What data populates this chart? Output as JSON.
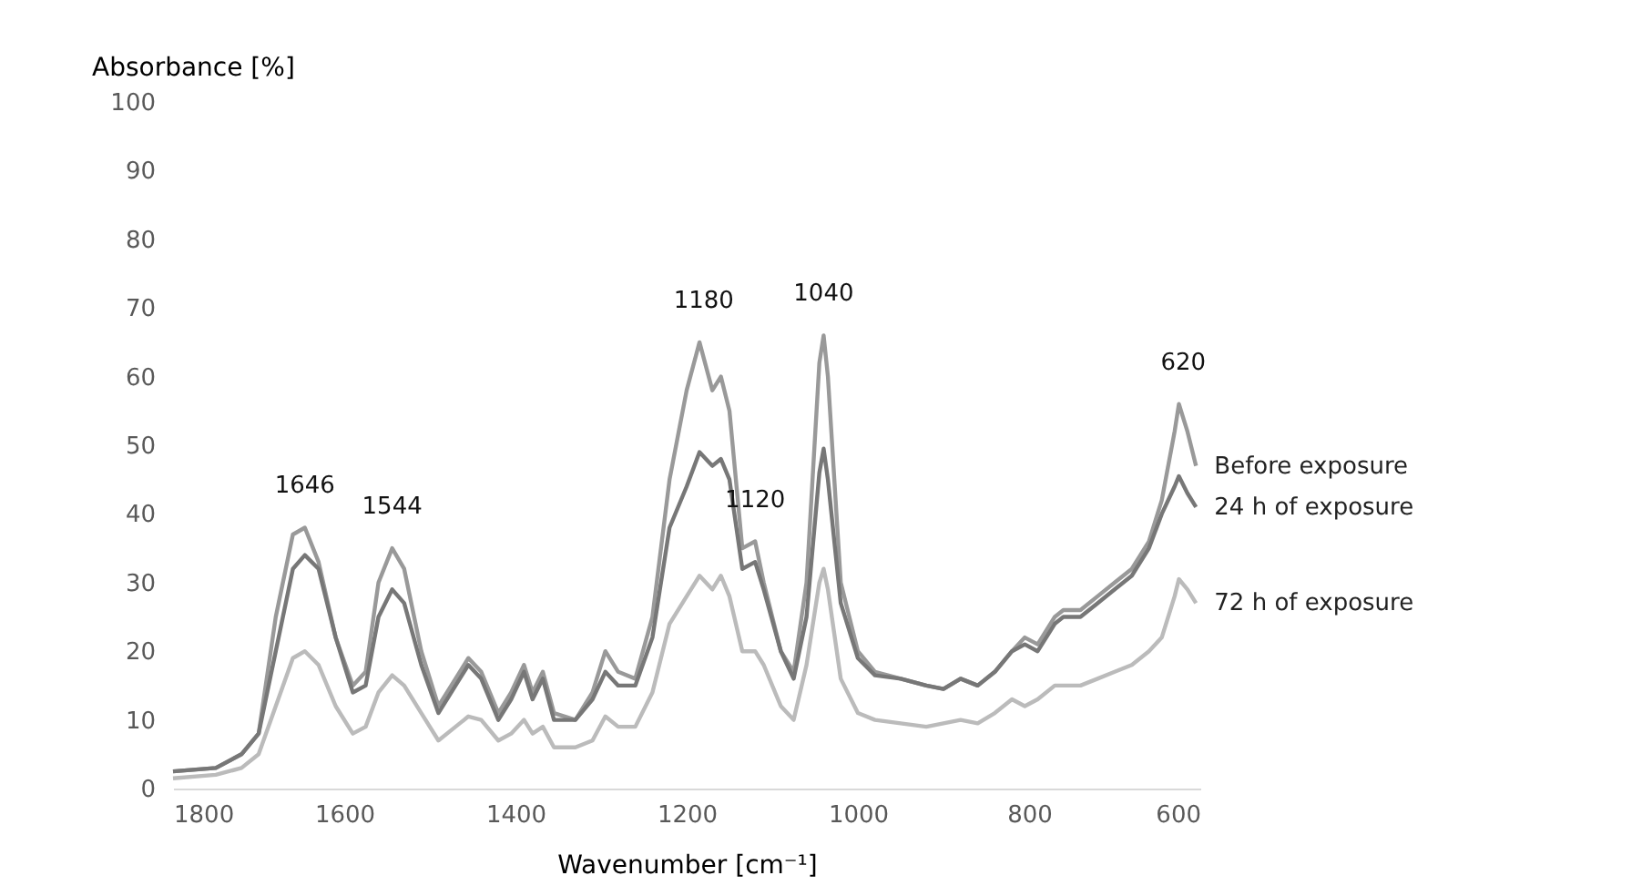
{
  "chart_data": {
    "type": "line",
    "xlabel": "Wavenumber [cm⁻¹]",
    "ylabel": "Absorbance [%]",
    "xlim": [
      1800,
      600
    ],
    "xticks": [
      1800,
      1600,
      1400,
      1200,
      1000,
      800,
      600
    ],
    "ylim": [
      0,
      100
    ],
    "yticks": [
      0,
      10,
      20,
      30,
      40,
      50,
      60,
      70,
      80,
      90,
      100
    ],
    "grid": false,
    "legend": false,
    "x": [
      1800,
      1750,
      1720,
      1700,
      1680,
      1660,
      1646,
      1630,
      1610,
      1590,
      1575,
      1560,
      1544,
      1530,
      1510,
      1490,
      1470,
      1455,
      1440,
      1420,
      1405,
      1390,
      1380,
      1368,
      1355,
      1330,
      1310,
      1295,
      1280,
      1260,
      1240,
      1220,
      1200,
      1185,
      1170,
      1160,
      1150,
      1135,
      1120,
      1110,
      1090,
      1075,
      1060,
      1045,
      1040,
      1035,
      1020,
      1000,
      980,
      950,
      920,
      900,
      880,
      860,
      840,
      820,
      805,
      790,
      770,
      760,
      740,
      720,
      700,
      680,
      660,
      645,
      630,
      625,
      615,
      605
    ],
    "series": [
      {
        "name": "Before exposure",
        "color": "#999999",
        "values": [
          2.5,
          3,
          5,
          8,
          25,
          37,
          38,
          33,
          22,
          15,
          17,
          30,
          35,
          32,
          20,
          12,
          16,
          19,
          17,
          11,
          14,
          18,
          14,
          17,
          11,
          10,
          14,
          20,
          17,
          16,
          25,
          45,
          58,
          65,
          58,
          60,
          55,
          35,
          36,
          30,
          20,
          17,
          30,
          62,
          66,
          60,
          30,
          20,
          17,
          16,
          15,
          14.5,
          16,
          15,
          17,
          20,
          22,
          21,
          25,
          26,
          26,
          28,
          30,
          32,
          36,
          42,
          52,
          56,
          52,
          47
        ]
      },
      {
        "name": "24 h of exposure",
        "color": "#777777",
        "values": [
          2.5,
          3,
          5,
          8,
          20,
          32,
          34,
          32,
          22,
          14,
          15,
          25,
          29,
          27,
          18,
          11,
          15,
          18,
          16,
          10,
          13,
          17,
          13,
          16,
          10,
          10,
          13,
          17,
          15,
          15,
          22,
          38,
          44,
          49,
          47,
          48,
          45,
          32,
          33,
          29,
          20,
          16,
          25,
          46,
          49.5,
          45,
          27,
          19,
          16.5,
          16,
          15,
          14.5,
          16,
          15,
          17,
          20,
          21,
          20,
          24,
          25,
          25,
          27,
          29,
          31,
          35,
          40,
          44,
          45.5,
          43,
          41
        ]
      },
      {
        "name": "72 h of exposure",
        "color": "#bbbbbb",
        "values": [
          1.5,
          2,
          3,
          5,
          12,
          19,
          20,
          18,
          12,
          8,
          9,
          14,
          16.5,
          15,
          11,
          7,
          9,
          10.5,
          10,
          7,
          8,
          10,
          8,
          9,
          6,
          6,
          7,
          10.5,
          9,
          9,
          14,
          24,
          28,
          31,
          29,
          31,
          28,
          20,
          20,
          18,
          12,
          10,
          18,
          30,
          32,
          29,
          16,
          11,
          10,
          9.5,
          9,
          9.5,
          10,
          9.5,
          11,
          13,
          12,
          13,
          15,
          15,
          15,
          16,
          17,
          18,
          20,
          22,
          28,
          30.5,
          29,
          27
        ]
      }
    ],
    "annotations": [
      {
        "text": "1646",
        "x": 1646,
        "y": 38
      },
      {
        "text": "1544",
        "x": 1544,
        "y": 35
      },
      {
        "text": "1180",
        "x": 1180,
        "y": 65
      },
      {
        "text": "1120",
        "x": 1120,
        "y": 36
      },
      {
        "text": "1040",
        "x": 1040,
        "y": 66
      },
      {
        "text": "620",
        "x": 620,
        "y": 56
      }
    ]
  }
}
